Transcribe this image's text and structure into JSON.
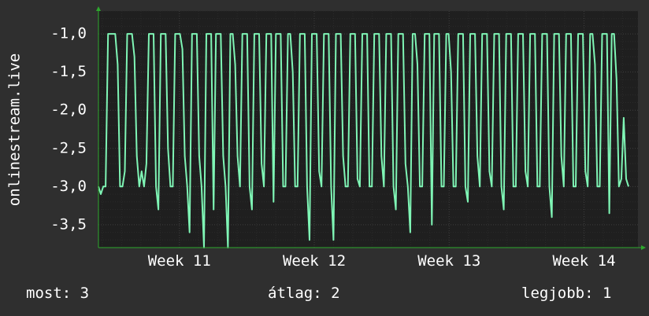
{
  "chart_data": {
    "type": "line",
    "ylabel": "onlinestream.live",
    "y_ticks": [
      -1.0,
      -1.5,
      -2.0,
      -2.5,
      -3.0,
      -3.5
    ],
    "y_tick_labels": [
      "-1,0",
      "-1,5",
      "-2,0",
      "-2,5",
      "-3,0",
      "-3,5"
    ],
    "ylim": [
      -3.8,
      -0.7
    ],
    "x_ticks": [
      "Week 11",
      "Week 12",
      "Week 13",
      "Week 14"
    ],
    "x_tick_at": [
      11,
      12,
      13,
      14
    ],
    "xlim": [
      10.4,
      14.4
    ],
    "grid": true,
    "colors": {
      "background": "#2f2f2f",
      "plot": "#1f1f1f",
      "grid": "#3d3d3d",
      "minor_grid": "#2a2a2a",
      "line": "#7ff5b5",
      "axis_arrow": "#2ea82e"
    },
    "series": [
      {
        "values": [
          -3.0,
          -3.1,
          -3.0,
          -3.0,
          -1.0,
          -1.0,
          -1.0,
          -1.0,
          -1.4,
          -3.0,
          -3.0,
          -2.8,
          -1.0,
          -1.0,
          -1.0,
          -1.3,
          -2.6,
          -3.0,
          -2.8,
          -3.0,
          -2.7,
          -1.0,
          -1.0,
          -1.0,
          -3.0,
          -3.3,
          -1.0,
          -1.0,
          -1.0,
          -2.5,
          -3.0,
          -3.0,
          -1.0,
          -1.0,
          -1.0,
          -1.2,
          -2.6,
          -3.0,
          -3.6,
          -1.0,
          -1.0,
          -1.0,
          -2.6,
          -3.0,
          -3.8,
          -1.0,
          -1.0,
          -1.0,
          -3.3,
          -1.0,
          -1.0,
          -1.0,
          -2.6,
          -3.0,
          -3.8,
          -1.0,
          -1.0,
          -1.4,
          -2.6,
          -3.0,
          -1.0,
          -1.0,
          -1.0,
          -3.0,
          -3.3,
          -1.0,
          -1.0,
          -1.0,
          -2.7,
          -3.0,
          -1.0,
          -1.0,
          -1.0,
          -3.2,
          -1.0,
          -1.0,
          -1.0,
          -3.0,
          -3.0,
          -1.0,
          -1.0,
          -1.5,
          -3.0,
          -3.0,
          -1.0,
          -1.0,
          -1.0,
          -3.0,
          -3.7,
          -1.0,
          -1.0,
          -1.0,
          -2.8,
          -3.0,
          -1.0,
          -1.0,
          -1.0,
          -3.0,
          -3.7,
          -1.0,
          -1.0,
          -1.0,
          -2.6,
          -3.0,
          -3.0,
          -1.0,
          -1.0,
          -1.0,
          -2.9,
          -3.0,
          -1.0,
          -1.0,
          -1.0,
          -3.0,
          -3.0,
          -1.0,
          -1.0,
          -1.0,
          -2.6,
          -3.0,
          -1.0,
          -1.0,
          -1.0,
          -3.0,
          -3.3,
          -1.0,
          -1.0,
          -1.0,
          -2.7,
          -3.0,
          -3.6,
          -1.0,
          -1.0,
          -1.4,
          -3.0,
          -3.0,
          -1.0,
          -1.0,
          -1.0,
          -3.5,
          -1.0,
          -1.0,
          -1.0,
          -3.0,
          -3.0,
          -1.0,
          -1.0,
          -1.5,
          -3.0,
          -3.0,
          -1.0,
          -1.0,
          -1.0,
          -3.0,
          -3.2,
          -1.0,
          -1.0,
          -1.0,
          -2.6,
          -3.0,
          -1.0,
          -1.0,
          -1.0,
          -2.8,
          -3.0,
          -1.0,
          -1.0,
          -1.0,
          -3.0,
          -3.3,
          -1.0,
          -1.0,
          -1.0,
          -3.0,
          -3.0,
          -1.0,
          -1.0,
          -1.0,
          -2.8,
          -3.0,
          -1.0,
          -1.0,
          -1.0,
          -3.0,
          -3.0,
          -1.0,
          -1.0,
          -1.0,
          -3.0,
          -3.4,
          -1.0,
          -1.0,
          -1.0,
          -2.6,
          -3.0,
          -1.0,
          -1.0,
          -1.0,
          -3.0,
          -3.0,
          -1.0,
          -1.0,
          -1.0,
          -2.8,
          -3.0,
          -1.0,
          -1.0,
          -1.4,
          -3.0,
          -3.0,
          -1.0,
          -1.0,
          -1.0,
          -3.35,
          -1.0,
          -1.0,
          -1.6,
          -3.0,
          -2.9,
          -2.1,
          -2.9,
          -3.0
        ]
      }
    ]
  },
  "footer": {
    "current": "most: 3",
    "average": "átlag: 2",
    "best": "legjobb: 1"
  }
}
